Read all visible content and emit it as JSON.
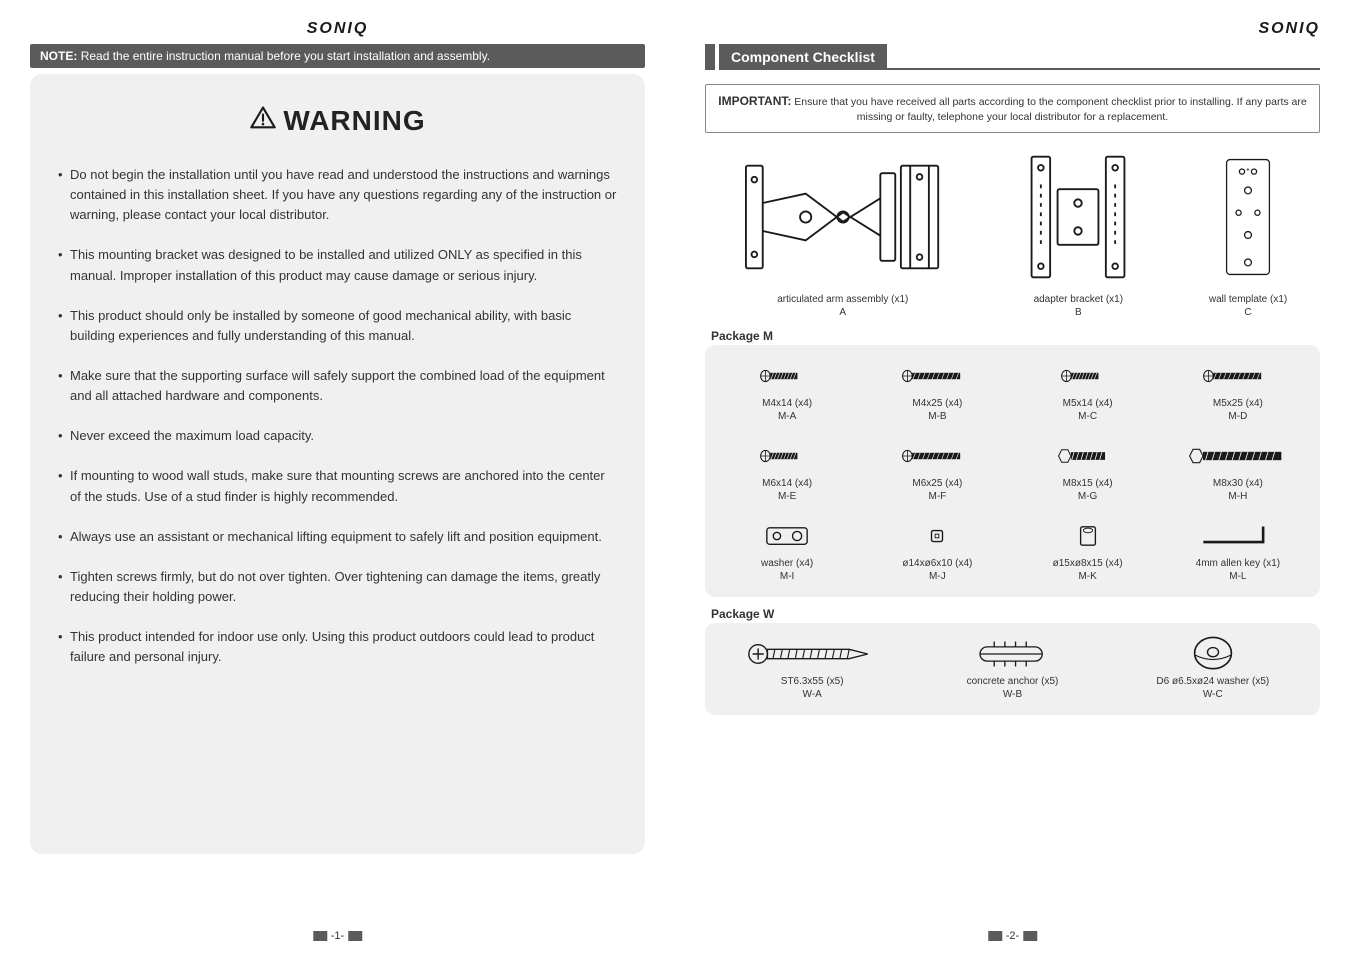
{
  "brand": "SONIQ",
  "left": {
    "note_label": "NOTE:",
    "note_text": "Read the entire instruction manual before you start installation and assembly.",
    "warning_heading": "WARNING",
    "warnings": [
      "Do not begin the installation until you have read and understood the instructions and warnings contained in this installation sheet. If you have any questions regarding any of the instruction or warning, please contact your local distributor.",
      "This mounting bracket was designed to be installed and utilized ONLY as specified in this manual. Improper installation of this product may cause damage or serious injury.",
      "This product should only be installed by someone of good mechanical ability, with basic building experiences and fully understanding of this manual.",
      "Make sure that the supporting surface will safely support the combined load of the equipment and all attached hardware and components.",
      "Never exceed the maximum load capacity.",
      "If mounting to wood wall studs, make sure that mounting screws are anchored into the center of the studs. Use of a stud finder is highly recommended.",
      "Always use an assistant or mechanical lifting equipment to safely lift and position equipment.",
      "Tighten screws firmly, but do not over tighten. Over tightening can damage the items, greatly reducing their holding power.",
      "This product intended for indoor use only. Using this product outdoors could lead to product failure and personal injury."
    ],
    "page_num": "-1-"
  },
  "right": {
    "section_title": "Component Checklist",
    "important_label": "IMPORTANT:",
    "important_text": "Ensure that you have received all parts according to the component checklist prior to installing. If any parts are missing or faulty, telephone your local distributor for a replacement.",
    "main_components": [
      {
        "label": "articulated arm assembly (x1)",
        "code": "A"
      },
      {
        "label": "adapter bracket (x1)",
        "code": "B"
      },
      {
        "label": "wall template (x1)",
        "code": "C"
      }
    ],
    "package_m_title": "Package M",
    "package_m": [
      {
        "label": "M4x14 (x4)",
        "code": "M-A",
        "icon": "screw-short"
      },
      {
        "label": "M4x25 (x4)",
        "code": "M-B",
        "icon": "screw-med"
      },
      {
        "label": "M5x14 (x4)",
        "code": "M-C",
        "icon": "screw-short"
      },
      {
        "label": "M5x25 (x4)",
        "code": "M-D",
        "icon": "screw-med"
      },
      {
        "label": "M6x14 (x4)",
        "code": "M-E",
        "icon": "screw-short"
      },
      {
        "label": "M6x25 (x4)",
        "code": "M-F",
        "icon": "screw-med"
      },
      {
        "label": "M8x15 (x4)",
        "code": "M-G",
        "icon": "screw-hex-short"
      },
      {
        "label": "M8x30 (x4)",
        "code": "M-H",
        "icon": "screw-hex-long"
      },
      {
        "label": "washer (x4)",
        "code": "M-I",
        "icon": "washer-rect"
      },
      {
        "label": "ø14xø6x10 (x4)",
        "code": "M-J",
        "icon": "spacer-small"
      },
      {
        "label": "ø15xø8x15 (x4)",
        "code": "M-K",
        "icon": "spacer-large"
      },
      {
        "label": "4mm allen key (x1)",
        "code": "M-L",
        "icon": "allen-key"
      }
    ],
    "package_w_title": "Package W",
    "package_w": [
      {
        "label": "ST6.3x55  (x5)",
        "code": "W-A",
        "icon": "lag-bolt"
      },
      {
        "label": "concrete anchor (x5)",
        "code": "W-B",
        "icon": "anchor"
      },
      {
        "label": "D6 ø6.5xø24 washer (x5)",
        "code": "W-C",
        "icon": "round-washer"
      }
    ],
    "page_num": "-2-"
  },
  "colors": {
    "panel_bg": "#f0f0f0",
    "bar_bg": "#5b5b5b",
    "text": "#333333",
    "line": "#1a1a1a"
  }
}
